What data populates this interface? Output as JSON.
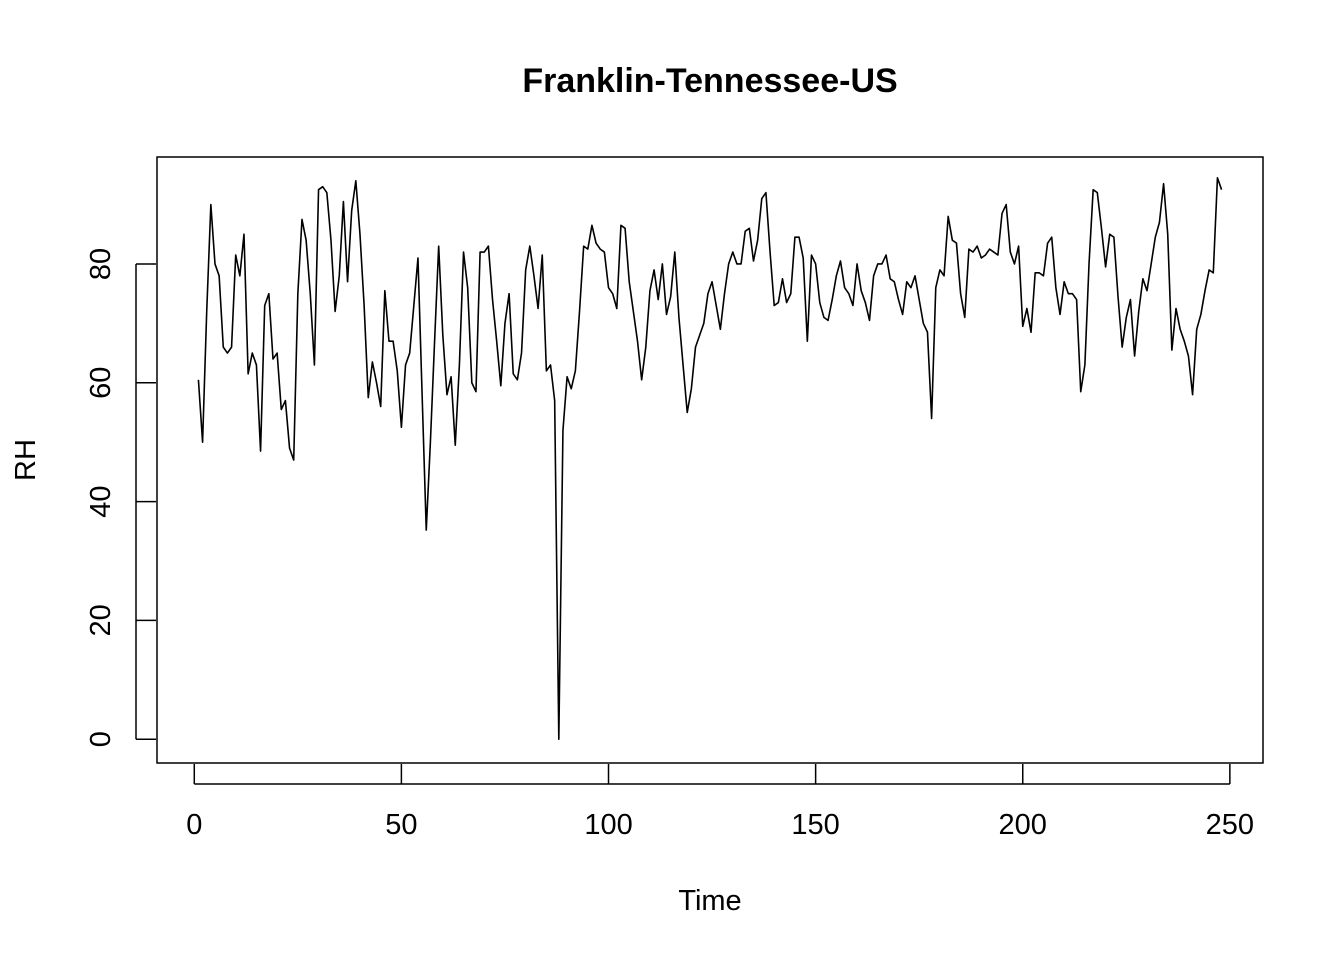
{
  "chart_data": {
    "type": "line",
    "title": "Franklin-Tennessee-US",
    "xlabel": "Time",
    "ylabel": "RH",
    "xlim": [
      -9,
      258
    ],
    "ylim": [
      -4,
      98
    ],
    "xticks": [
      0,
      50,
      100,
      150,
      200,
      250
    ],
    "yticks": [
      0,
      20,
      40,
      60,
      80
    ],
    "grid": false,
    "legend": "none",
    "line_color": "#000000",
    "x": [
      1,
      2,
      3,
      4,
      5,
      6,
      7,
      8,
      9,
      10,
      11,
      12,
      13,
      14,
      15,
      16,
      17,
      18,
      19,
      20,
      21,
      22,
      23,
      24,
      25,
      26,
      27,
      28,
      29,
      30,
      31,
      32,
      33,
      34,
      35,
      36,
      37,
      38,
      39,
      40,
      41,
      42,
      43,
      44,
      45,
      46,
      47,
      48,
      49,
      50,
      51,
      52,
      53,
      54,
      55,
      56,
      57,
      58,
      59,
      60,
      61,
      62,
      63,
      64,
      65,
      66,
      67,
      68,
      69,
      70,
      71,
      72,
      73,
      74,
      75,
      76,
      77,
      78,
      79,
      80,
      81,
      82,
      83,
      84,
      85,
      86,
      87,
      88,
      89,
      90,
      91,
      92,
      93,
      94,
      95,
      96,
      97,
      98,
      99,
      100,
      101,
      102,
      103,
      104,
      105,
      106,
      107,
      108,
      109,
      110,
      111,
      112,
      113,
      114,
      115,
      116,
      117,
      118,
      119,
      120,
      121,
      122,
      123,
      124,
      125,
      126,
      127,
      128,
      129,
      130,
      131,
      132,
      133,
      134,
      135,
      136,
      137,
      138,
      139,
      140,
      141,
      142,
      143,
      144,
      145,
      146,
      147,
      148,
      149,
      150,
      151,
      152,
      153,
      154,
      155,
      156,
      157,
      158,
      159,
      160,
      161,
      162,
      163,
      164,
      165,
      166,
      167,
      168,
      169,
      170,
      171,
      172,
      173,
      174,
      175,
      176,
      177,
      178,
      179,
      180,
      181,
      182,
      183,
      184,
      185,
      186,
      187,
      188,
      189,
      190,
      191,
      192,
      193,
      194,
      195,
      196,
      197,
      198,
      199,
      200,
      201,
      202,
      203,
      204,
      205,
      206,
      207,
      208,
      209,
      210,
      211,
      212,
      213,
      214,
      215,
      216,
      217,
      218,
      219,
      220,
      221,
      222,
      223,
      224,
      225,
      226,
      227,
      228,
      229,
      230,
      231,
      232,
      233,
      234,
      235,
      236,
      237,
      238,
      239,
      240,
      241,
      242,
      243,
      244,
      245,
      246,
      247,
      248
    ],
    "y": [
      60.5,
      50,
      72,
      90,
      80,
      78,
      66,
      65,
      66,
      81.5,
      78,
      85,
      61.5,
      65,
      63,
      48.5,
      73,
      75,
      64,
      65,
      55.5,
      57,
      49,
      47,
      75,
      87.5,
      84,
      75,
      63,
      92.5,
      93,
      92,
      84,
      72,
      78,
      90.5,
      77,
      89,
      94,
      85,
      73,
      57.5,
      63.5,
      60,
      56,
      75.5,
      67,
      67,
      62,
      52.5,
      63,
      65,
      73,
      81,
      58,
      35.2,
      50,
      66.8,
      83,
      68,
      58,
      61,
      49.5,
      63,
      82,
      76,
      60,
      58.5,
      82,
      82,
      83,
      74,
      67,
      59.5,
      70,
      75,
      61.5,
      60.5,
      65,
      79,
      83,
      78,
      72.5,
      81.5,
      62,
      63,
      57,
      0,
      52,
      61,
      59,
      62,
      72,
      83,
      82.5,
      86.5,
      83.5,
      82.5,
      82,
      76,
      75,
      72.5,
      86.5,
      86,
      77,
      72,
      67,
      60.5,
      66,
      75.5,
      79,
      74,
      80,
      71.5,
      74.5,
      82,
      71,
      63,
      55,
      59,
      66,
      68,
      70,
      75,
      77,
      73,
      69,
      75,
      80,
      82,
      80,
      80,
      85.5,
      86,
      80.5,
      84,
      91,
      92,
      82,
      73,
      73.5,
      77.5,
      73.5,
      75,
      84.5,
      84.5,
      81,
      67,
      81.5,
      80,
      73.5,
      71,
      70.5,
      74,
      78,
      80.5,
      76,
      75,
      73,
      80,
      75.5,
      73.5,
      70.5,
      78,
      80,
      80,
      81.5,
      77.5,
      77,
      74,
      71.5,
      77,
      76,
      78,
      74,
      70,
      68.5,
      54,
      76,
      79,
      78,
      88,
      84,
      83.5,
      75,
      71,
      82.5,
      82,
      83,
      81,
      81.5,
      82.5,
      82,
      81.5,
      88.5,
      90,
      82,
      80,
      83,
      69.5,
      72.5,
      68.5,
      78.5,
      78.5,
      78,
      83.5,
      84.5,
      76,
      71.5,
      77,
      75,
      75,
      74,
      58.5,
      63,
      80,
      92.5,
      92,
      86,
      79.5,
      85,
      84.5,
      74.5,
      66,
      71,
      74,
      64.5,
      72,
      77.5,
      75.5,
      80,
      84.5,
      87,
      93.5,
      85,
      65.5,
      72.5,
      69,
      67,
      64.5,
      58,
      69,
      71.5,
      75.5,
      79,
      78.5,
      94.5,
      92.5
    ]
  }
}
